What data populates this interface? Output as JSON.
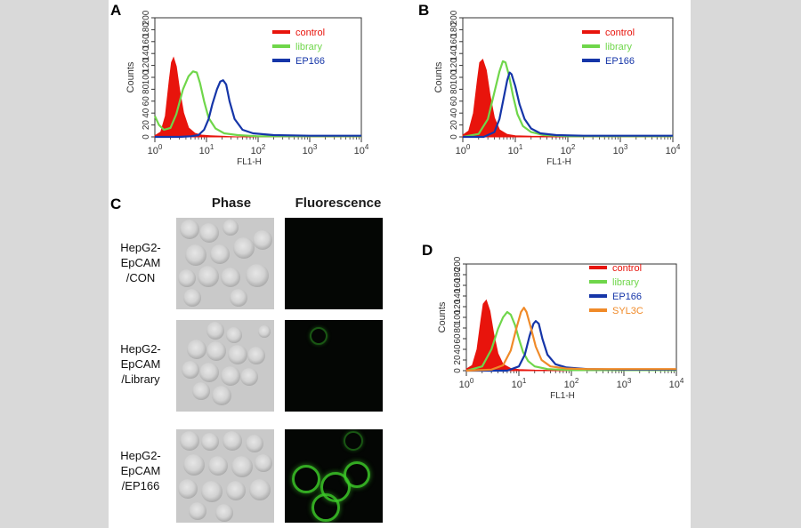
{
  "panels": {
    "A": "A",
    "B": "B",
    "C": "C",
    "D": "D"
  },
  "microscopy": {
    "col_phase": "Phase",
    "col_fluorescence": "Fluorescence",
    "rows": [
      "HepG2-\nEpCAM\n/CON",
      "HepG2-\nEpCAM\n/Library",
      "HepG2-\nEpCAM\n/EP166"
    ]
  },
  "chart_data": [
    {
      "panel": "A",
      "type": "line",
      "xlabel": "FL1-H",
      "ylabel": "Counts",
      "xscale": "log",
      "xlim": [
        1,
        10000
      ],
      "ylim": [
        0,
        200
      ],
      "yticks": [
        0,
        20,
        40,
        60,
        80,
        100,
        120,
        140,
        160,
        180,
        200
      ],
      "xticks": [
        {
          "base": "10",
          "exp": "0"
        },
        {
          "base": "10",
          "exp": "1"
        },
        {
          "base": "10",
          "exp": "2"
        },
        {
          "base": "10",
          "exp": "3"
        },
        {
          "base": "10",
          "exp": "4"
        }
      ],
      "legend_position": "top-right",
      "series": [
        {
          "name": "control",
          "color": "#e8140c",
          "filled": true,
          "x": [
            1,
            1.3,
            1.6,
            1.9,
            2.1,
            2.3,
            2.6,
            3,
            3.6,
            4.5,
            6,
            8,
            12,
            20,
            40,
            10000
          ],
          "y": [
            2,
            8,
            35,
            95,
            125,
            133,
            118,
            80,
            40,
            15,
            6,
            3,
            2,
            1,
            0,
            0
          ]
        },
        {
          "name": "library",
          "color": "#6fd64a",
          "filled": false,
          "x": [
            1,
            1.2,
            1.5,
            2,
            2.6,
            3.5,
            4.5,
            5.5,
            6.5,
            7.5,
            9,
            11,
            15,
            22,
            40,
            100,
            10000
          ],
          "y": [
            35,
            20,
            12,
            15,
            38,
            80,
            102,
            110,
            108,
            90,
            60,
            32,
            14,
            6,
            3,
            1,
            1
          ]
        },
        {
          "name": "EP166",
          "color": "#1535a8",
          "filled": false,
          "x": [
            1,
            3,
            5,
            7,
            9,
            11,
            13,
            16,
            18.5,
            21,
            24,
            28,
            35,
            50,
            80,
            200,
            1000,
            10000
          ],
          "y": [
            0,
            0,
            1,
            3,
            12,
            30,
            55,
            80,
            93,
            95,
            88,
            60,
            30,
            12,
            6,
            3,
            2,
            2
          ]
        }
      ]
    },
    {
      "panel": "B",
      "type": "line",
      "xlabel": "FL1-H",
      "ylabel": "Counts",
      "xscale": "log",
      "xlim": [
        1,
        10000
      ],
      "ylim": [
        0,
        200
      ],
      "yticks": [
        0,
        20,
        40,
        60,
        80,
        100,
        120,
        140,
        160,
        180,
        200
      ],
      "xticks": [
        {
          "base": "10",
          "exp": "0"
        },
        {
          "base": "10",
          "exp": "1"
        },
        {
          "base": "10",
          "exp": "2"
        },
        {
          "base": "10",
          "exp": "3"
        },
        {
          "base": "10",
          "exp": "4"
        }
      ],
      "legend_position": "top-right",
      "series": [
        {
          "name": "control",
          "color": "#e8140c",
          "filled": true,
          "x": [
            1,
            1.3,
            1.6,
            1.9,
            2.1,
            2.4,
            2.8,
            3.3,
            4,
            5,
            7,
            10,
            20,
            10000
          ],
          "y": [
            3,
            10,
            40,
            95,
            125,
            130,
            112,
            70,
            32,
            12,
            4,
            2,
            1,
            0
          ]
        },
        {
          "name": "library",
          "color": "#6fd64a",
          "filled": false,
          "x": [
            1,
            2,
            3,
            4,
            5,
            5.8,
            6.5,
            7.5,
            9,
            11,
            14,
            20,
            35,
            100,
            10000
          ],
          "y": [
            0,
            5,
            30,
            75,
            110,
            127,
            125,
            105,
            70,
            38,
            18,
            8,
            3,
            1,
            1
          ]
        },
        {
          "name": "EP166",
          "color": "#1535a8",
          "filled": false,
          "x": [
            1,
            2.5,
            4,
            5,
            6,
            7,
            7.8,
            8.5,
            10,
            12,
            15,
            20,
            30,
            60,
            200,
            1000,
            10000
          ],
          "y": [
            0,
            0,
            8,
            30,
            65,
            95,
            108,
            105,
            85,
            55,
            30,
            14,
            6,
            3,
            2,
            2,
            2
          ]
        }
      ]
    },
    {
      "panel": "D",
      "type": "line",
      "xlabel": "FL1-H",
      "ylabel": "Counts",
      "xscale": "log",
      "xlim": [
        1,
        10000
      ],
      "ylim": [
        0,
        200
      ],
      "yticks": [
        0,
        20,
        40,
        60,
        80,
        100,
        120,
        140,
        160,
        180,
        200
      ],
      "xticks": [
        {
          "base": "10",
          "exp": "0"
        },
        {
          "base": "10",
          "exp": "1"
        },
        {
          "base": "10",
          "exp": "2"
        },
        {
          "base": "10",
          "exp": "3"
        },
        {
          "base": "10",
          "exp": "4"
        }
      ],
      "legend_position": "top-right",
      "series": [
        {
          "name": "control",
          "color": "#e8140c",
          "filled": true,
          "x": [
            1,
            1.3,
            1.6,
            1.9,
            2.1,
            2.4,
            2.8,
            3.3,
            4,
            5,
            7,
            10,
            20,
            10000
          ],
          "y": [
            3,
            10,
            40,
            95,
            125,
            132,
            112,
            70,
            32,
            12,
            4,
            2,
            1,
            0
          ]
        },
        {
          "name": "library",
          "color": "#6fd64a",
          "filled": false,
          "x": [
            1,
            2,
            3,
            4,
            5,
            6,
            7,
            8.5,
            10,
            12,
            15,
            20,
            35,
            100,
            10000
          ],
          "y": [
            0,
            8,
            40,
            78,
            100,
            110,
            105,
            85,
            60,
            35,
            18,
            8,
            3,
            1,
            1
          ]
        },
        {
          "name": "EP166",
          "color": "#1535a8",
          "filled": false,
          "x": [
            1,
            6,
            10,
            13,
            16,
            19,
            21,
            24,
            28,
            35,
            50,
            80,
            200,
            1000,
            10000
          ],
          "y": [
            0,
            0,
            8,
            30,
            65,
            88,
            93,
            88,
            60,
            30,
            12,
            6,
            3,
            2,
            2
          ]
        },
        {
          "name": "SYL3C",
          "color": "#f08a28",
          "filled": false,
          "x": [
            1,
            3,
            5,
            7,
            9,
            11,
            12.5,
            14,
            17,
            21,
            27,
            40,
            80,
            200,
            1000,
            10000
          ],
          "y": [
            0,
            2,
            10,
            38,
            80,
            110,
            118,
            110,
            80,
            45,
            20,
            8,
            4,
            3,
            3,
            3
          ]
        }
      ]
    }
  ]
}
